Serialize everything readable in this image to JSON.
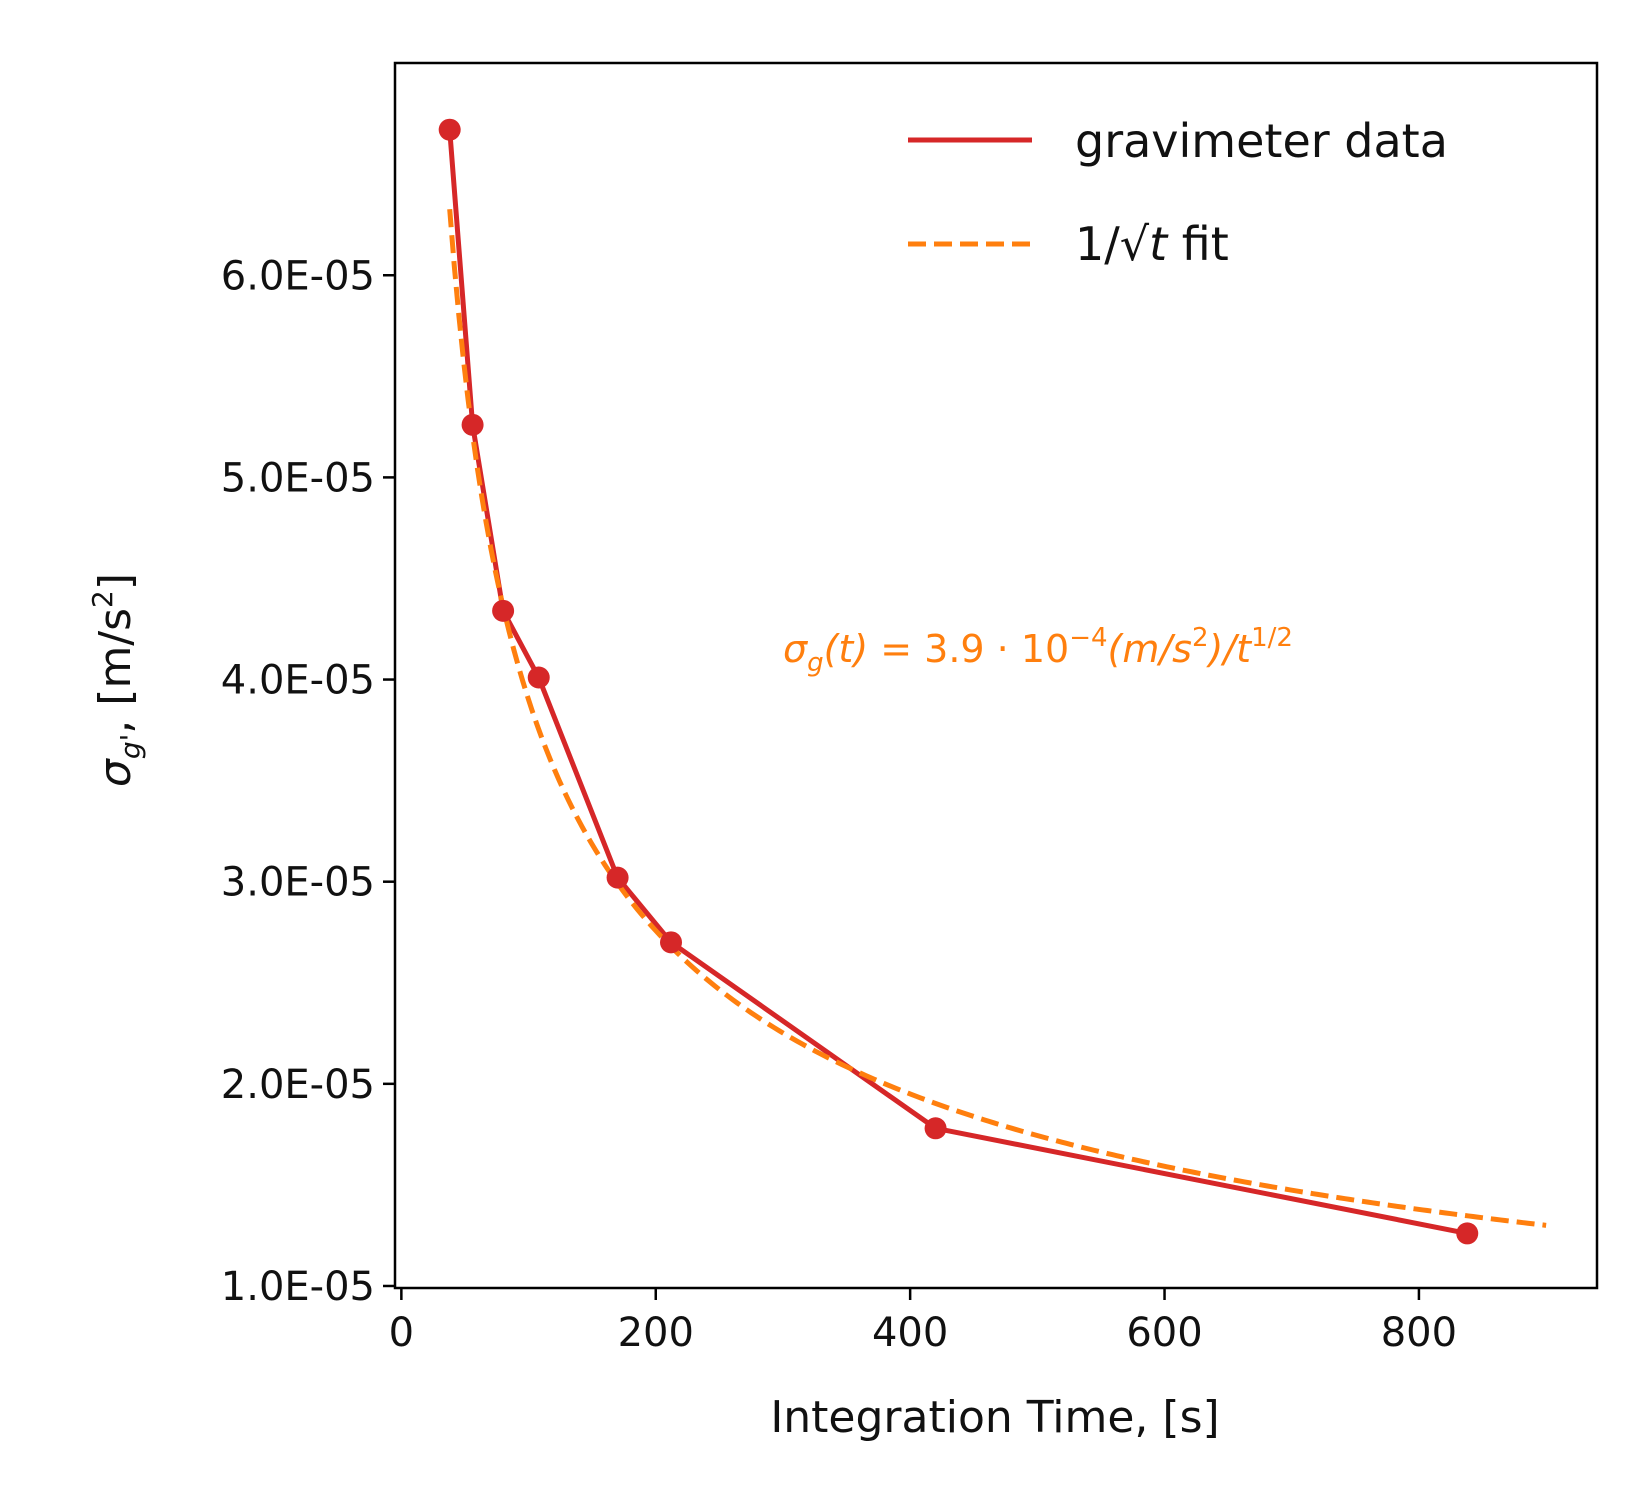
{
  "chart_data": {
    "type": "line",
    "title": "",
    "xlabel": "Integration Time, [s]",
    "ylabel": "σ_g', [m/s²]",
    "xlim": [
      -5,
      940
    ],
    "ylim": [
      9.9e-06,
      7.05e-05
    ],
    "xticks": [
      0,
      200,
      400,
      600,
      800
    ],
    "xtick_labels": [
      "0",
      "200",
      "400",
      "600",
      "800"
    ],
    "yticks": [
      1e-05,
      2e-05,
      3e-05,
      4e-05,
      5e-05,
      6e-05
    ],
    "ytick_labels": [
      "1.0E-05",
      "2.0E-05",
      "3.0E-05",
      "4.0E-05",
      "5.0E-05",
      "6.0E-05"
    ],
    "grid": false,
    "legend_position": "top-right",
    "series": [
      {
        "name": "gravimeter data",
        "style": "solid-with-markers",
        "color": "#d62728",
        "x": [
          38,
          56,
          80,
          108,
          170,
          212,
          420,
          838
        ],
        "y": [
          6.72e-05,
          5.26e-05,
          4.34e-05,
          4.01e-05,
          3.02e-05,
          2.7e-05,
          1.78e-05,
          1.26e-05
        ]
      },
      {
        "name": "1/√t fit",
        "style": "dashed",
        "color": "#ff7f0e",
        "function": "3.9e-4 / sqrt(t)",
        "coefficient": 0.00039,
        "x_start": 38,
        "x_end": 900
      }
    ],
    "legend": {
      "entries": [
        {
          "label": "gravimeter data",
          "color": "#d62728",
          "style": "solid"
        },
        {
          "label_prefix": "1/√",
          "label_var": "t",
          "label_suffix": " fit",
          "color": "#ff7f0e",
          "style": "dashed"
        }
      ]
    },
    "annotation": {
      "sigma": "σ",
      "sub_g": "g",
      "open_t": "(t)",
      "eq": " = 3.9 · 10",
      "exp_neg4": "−4",
      "units_open": "(m/s",
      "sq": "2",
      "units_close": ")/t",
      "half": "1/2",
      "color": "#ff7f0e"
    },
    "ylabel_parts": {
      "sigma": "σ",
      "sub": "g'",
      "rest": ", [m/s",
      "sq": "2",
      "close": "]"
    }
  }
}
